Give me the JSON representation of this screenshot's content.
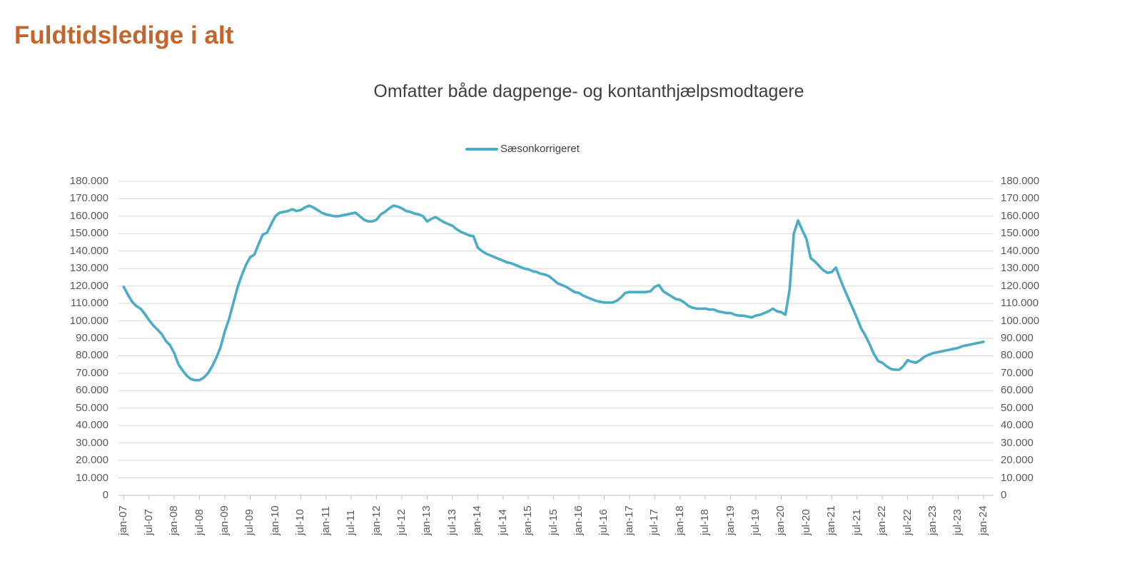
{
  "page_title": "Fuldtidsledige i alt",
  "colors": {
    "title": "#C2662D",
    "chart_title_text": "#3F3F3F",
    "axis_label_text": "#595959",
    "gridline": "#D9D9D9",
    "axis_line": "#BFBFBF",
    "series_line": "#4BACC6"
  },
  "legend": {
    "items": [
      {
        "label": "Sæsonkorrigeret",
        "color": "#4BACC6"
      }
    ],
    "position": "top-center"
  },
  "chart_data": {
    "type": "line",
    "title": "Omfatter både dagpenge- og kontanthjælpsmodtagere",
    "xlabel": "",
    "ylabel": "",
    "grid": "horizontal",
    "x_unit": "month",
    "x_range": [
      "jan-07",
      "jan-24"
    ],
    "x_tick_labels": [
      "jan-07",
      "jul-07",
      "jan-08",
      "jul-08",
      "jan-09",
      "jul-09",
      "jan-10",
      "jul-10",
      "jan-11",
      "jul-11",
      "jan-12",
      "jul-12",
      "jan-13",
      "jul-13",
      "jan-14",
      "jul-14",
      "jan-15",
      "jul-15",
      "jan-16",
      "jul-16",
      "jan-17",
      "jul-17",
      "jan-18",
      "jul-18",
      "jan-19",
      "jul-19",
      "jan-20",
      "jul-20",
      "jan-21",
      "jul-21",
      "jan-22",
      "jul-22",
      "jan-23",
      "jul-23",
      "jan-24"
    ],
    "y_axis": {
      "min": 0,
      "max": 180000,
      "step": 10000,
      "tick_labels_top_to_bottom": [
        "180.000",
        "170.000",
        "160.000",
        "150.000",
        "140.000",
        "130.000",
        "120.000",
        "110.000",
        "100.000",
        "90.000",
        "80.000",
        "70.000",
        "60.000",
        "50.000",
        "40.000",
        "30.000",
        "20.000",
        "10.000",
        "0"
      ],
      "sides": [
        "left",
        "right"
      ]
    },
    "series": [
      {
        "name": "Sæsonkorrigeret",
        "color": "#4BACC6",
        "start_month": "jan-07",
        "frequency": "monthly",
        "values": [
          119500,
          115000,
          111000,
          108500,
          107000,
          104000,
          100500,
          97500,
          95000,
          92500,
          88500,
          86000,
          81500,
          75000,
          71500,
          68500,
          66500,
          66000,
          66000,
          67500,
          70000,
          74000,
          79000,
          85000,
          94000,
          101000,
          110000,
          119000,
          126000,
          132000,
          136500,
          138000,
          144000,
          149500,
          150500,
          155500,
          160000,
          162000,
          162500,
          163000,
          164000,
          163000,
          163500,
          165000,
          166000,
          165000,
          163500,
          162000,
          161000,
          160500,
          160000,
          160000,
          160500,
          161000,
          161500,
          162000,
          160000,
          158000,
          157000,
          157000,
          158000,
          161000,
          162500,
          164500,
          166000,
          165500,
          164500,
          163000,
          162500,
          161500,
          161000,
          160000,
          157000,
          158500,
          159500,
          158000,
          156500,
          155500,
          154500,
          152500,
          151000,
          150000,
          149000,
          148500,
          142000,
          140000,
          138500,
          137500,
          136500,
          135500,
          134500,
          133500,
          133000,
          132000,
          131000,
          130000,
          129500,
          128500,
          128000,
          127000,
          126500,
          125500,
          123500,
          121500,
          120500,
          119500,
          118000,
          116500,
          116000,
          114500,
          113500,
          112500,
          111500,
          111000,
          110500,
          110500,
          110500,
          111500,
          113500,
          116000,
          116500,
          116500,
          116500,
          116500,
          116500,
          117000,
          119500,
          120500,
          117000,
          115500,
          114000,
          112500,
          112000,
          110500,
          108500,
          107500,
          107000,
          107000,
          107000,
          106500,
          106500,
          105500,
          105000,
          104500,
          104500,
          103500,
          103000,
          103000,
          102500,
          102000,
          103000,
          103500,
          104500,
          105500,
          107000,
          105500,
          105000,
          103500,
          118000,
          150000,
          157500,
          152000,
          147000,
          136000,
          134000,
          131500,
          129000,
          127500,
          128000,
          130500,
          124000,
          118000,
          112500,
          107000,
          101500,
          95500,
          91500,
          86500,
          81000,
          77000,
          76000,
          74000,
          72500,
          72000,
          72000,
          74000,
          77500,
          76500,
          76000,
          77500,
          79500,
          80500,
          81500,
          82000,
          82500,
          83000,
          83500,
          84000,
          84500,
          85500,
          86000,
          86500,
          87000,
          87500,
          88000
        ]
      }
    ]
  }
}
